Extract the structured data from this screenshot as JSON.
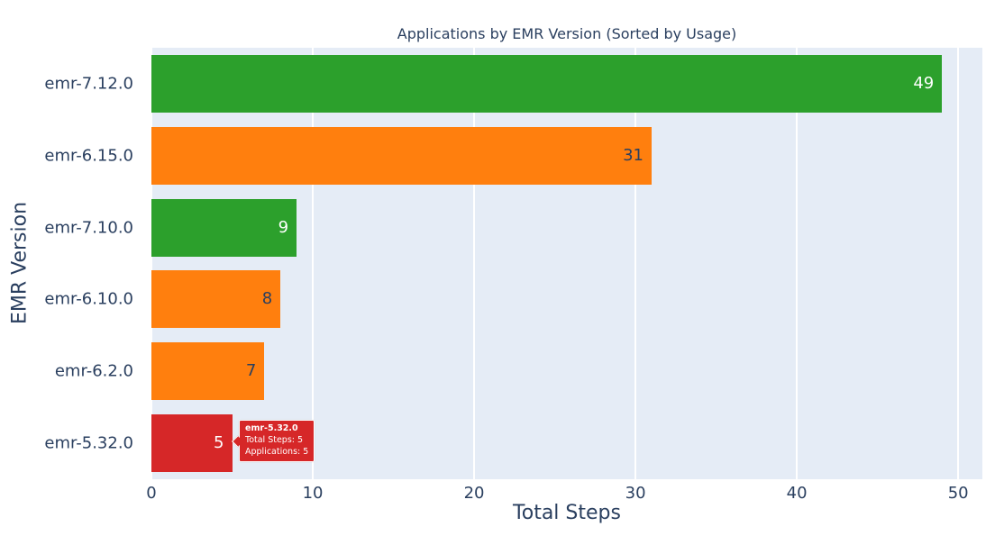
{
  "title": "Applications by EMR Version (Sorted by Usage)",
  "colors": {
    "text": "#2a3f5f",
    "plot_background": "#e5ecf6",
    "gridline": "#ffffff",
    "green": "#2ca02c",
    "orange": "#ff7f0e",
    "red": "#d62728"
  },
  "chart_data": {
    "type": "bar",
    "orientation": "horizontal",
    "title": "Applications by EMR Version (Sorted by Usage)",
    "xlabel": "Total Steps",
    "ylabel": "EMR Version",
    "categories": [
      "emr-7.12.0",
      "emr-6.15.0",
      "emr-7.10.0",
      "emr-6.10.0",
      "emr-6.2.0",
      "emr-5.32.0"
    ],
    "values": [
      49,
      31,
      9,
      8,
      7,
      5
    ],
    "bar_colors": [
      "#2ca02c",
      "#ff7f0e",
      "#2ca02c",
      "#ff7f0e",
      "#ff7f0e",
      "#d62728"
    ],
    "value_label_colors": [
      "#ffffff",
      "#2a3f5f",
      "#ffffff",
      "#2a3f5f",
      "#2a3f5f",
      "#ffffff"
    ],
    "value_labels": [
      "49",
      "31",
      "9",
      "8",
      "7",
      "5"
    ],
    "xlim": [
      0,
      51.5
    ],
    "xticks": [
      0,
      10,
      20,
      30,
      40,
      50
    ],
    "xtick_labels": [
      "0",
      "10",
      "20",
      "30",
      "40",
      "50"
    ],
    "grid": true,
    "legend": false
  },
  "tooltip": {
    "target_category": "emr-5.32.0",
    "title": "emr-5.32.0",
    "lines": [
      "Total Steps: 5",
      "Applications: 5"
    ],
    "background": "#d62728"
  }
}
